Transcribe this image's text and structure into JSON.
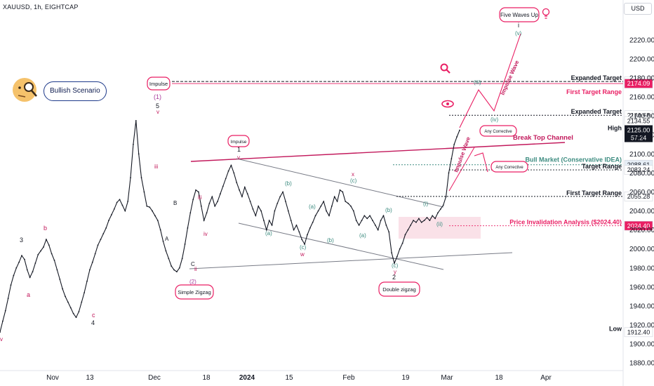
{
  "header": {
    "symbol": "XAUUSD, 1h, EIGHTCAP",
    "currency": "USD"
  },
  "chart_data": {
    "type": "line",
    "title": "XAUUSD, 1h, EIGHTCAP",
    "ylim": [
      1872,
      2262
    ],
    "y_ticks": [
      1880,
      1900,
      1920,
      1940,
      1960,
      1980,
      2000,
      2020,
      2040,
      2060,
      2080,
      2100,
      2120,
      2140,
      2160,
      2180,
      2200,
      2220
    ],
    "x_ticks": [
      "Nov",
      "13",
      "Dec",
      "18",
      "2024",
      "15",
      "Feb",
      "19",
      "Mar",
      "18",
      "Apr"
    ],
    "series": [
      {
        "values": [
          1912.4,
          1924,
          1935,
          1948,
          1962,
          1972,
          1980,
          1986,
          1993,
          1989,
          1978,
          1970,
          1976,
          1985,
          1994,
          1998,
          2002,
          2010,
          2004,
          1995,
          1988,
          1978,
          1968,
          1958,
          1950,
          1944,
          1938,
          1932,
          1928,
          1934,
          1944,
          1954,
          1966,
          1978,
          1986,
          1995,
          2004,
          2010,
          2016,
          2022,
          2030,
          2036,
          2042,
          2049,
          2052,
          2046,
          2040,
          2050,
          2075,
          2110,
          2135,
          2100,
          2075,
          2060,
          2045,
          2044,
          2040,
          2035,
          2030,
          2020,
          2008,
          1998,
          1990,
          1982,
          1978,
          1976,
          1980,
          1990,
          2005,
          2022,
          2038,
          2052,
          2062,
          2060,
          2045,
          2030,
          2038,
          2048,
          2055,
          2045,
          2050,
          2058,
          2066,
          2074,
          2082,
          2088,
          2080,
          2070,
          2062,
          2055,
          2065,
          2058,
          2050,
          2042,
          2035,
          2045,
          2040,
          2030,
          2020,
          2030,
          2025,
          2040,
          2048,
          2055,
          2060,
          2050,
          2040,
          2030,
          2020,
          2025,
          2018,
          2010,
          2005,
          2015,
          2022,
          2028,
          2035,
          2040,
          2045,
          2050,
          2040,
          2035,
          2045,
          2055,
          2050,
          2062,
          2060,
          2050,
          2048,
          2045,
          2040,
          2030,
          2025,
          2030,
          2035,
          2032,
          2035,
          2030,
          2025,
          2020,
          2030,
          2035,
          2025,
          2018,
          1996,
          1985,
          1992,
          2000,
          2006,
          2015,
          2020,
          2025,
          2030,
          2028,
          2032,
          2028,
          2030,
          2033,
          2030,
          2035,
          2032,
          2038,
          2042,
          2046,
          2055,
          2080,
          2095,
          2110,
          2118,
          2125
        ]
      }
    ],
    "price_lines": [
      {
        "label": "Expanded Target",
        "value": 2176.22,
        "color": "#131722"
      },
      {
        "label": "First Target Range",
        "value": 2174.09,
        "color": "#e91e63"
      },
      {
        "label": "Expanded Target",
        "value": 2140.68,
        "color": "#131722"
      },
      {
        "label": "High",
        "value": 2134.55,
        "color": "#131722"
      },
      {
        "label": "Bull Market (Conservative IDEA)",
        "value": 2088.61,
        "color": "#3d8c80"
      },
      {
        "label": "Target Range",
        "value": 2083.24,
        "color": "#131722"
      },
      {
        "label": "First Target Range",
        "value": 2055.28,
        "color": "#131722"
      },
      {
        "label": "Price Invalidation Analysis ($2024.40)",
        "value": 2024.4,
        "color": "#e91e63"
      },
      {
        "label": "Low",
        "value": 1912.4,
        "color": "#131722"
      }
    ],
    "current_price": {
      "value": "2125.00",
      "countdown": "57:24"
    },
    "annotations": {
      "boxes": [
        "Five Waves Up",
        "Impulse",
        "Impulse",
        "Simple Zigzag",
        "Double zigzag",
        "Any Corrective",
        "Any Corrective"
      ],
      "texts": [
        "Break Top Channel",
        "Impulse Wave",
        "Impulse Wave"
      ],
      "waves": [
        "3",
        "b",
        "a",
        "c",
        "4",
        "5",
        "(1)",
        "v",
        "iii",
        "B",
        "A",
        "C",
        "(2)",
        "ii",
        "iii",
        "iv",
        "1",
        "v",
        "(a)",
        "(b)",
        "(c)",
        "w",
        "(a)",
        "(b)",
        "(c)",
        "x",
        "(a)",
        "(b)",
        "(c)",
        "y",
        "2",
        "(i)",
        "(ii)",
        "(iii)",
        "(iv)",
        "(v)",
        "i",
        "v"
      ]
    },
    "legend": "none",
    "grid": false
  },
  "bullish_badge": "Bullish Scenario",
  "colors": {
    "accent": "#e91e63",
    "teal": "#3d8c80",
    "candles": "#131722"
  }
}
